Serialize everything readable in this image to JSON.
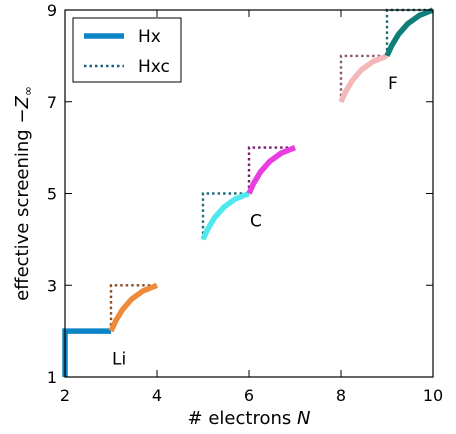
{
  "chart_data": {
    "type": "line",
    "xlabel": "# electrons",
    "xlabel_symbol": "N",
    "ylabel": "effective screening −",
    "ylabel_symbol": "Z",
    "ylabel_subscript": "∞",
    "xlim": [
      2,
      10
    ],
    "ylim": [
      1,
      9
    ],
    "xticks": [
      2,
      4,
      6,
      8,
      10
    ],
    "yticks": [
      1,
      3,
      5,
      7,
      9
    ],
    "grid": false,
    "legend": {
      "placement": "top-left",
      "entries": [
        {
          "label": "Hx",
          "style": "solid"
        },
        {
          "label": "Hxc",
          "style": "dotted"
        }
      ]
    },
    "annotations": [
      {
        "text": "Li",
        "x": 3.0,
        "y": 1.45
      },
      {
        "text": "C",
        "x": 6.0,
        "y": 4.45
      },
      {
        "text": "F",
        "x": 9.0,
        "y": 7.45
      }
    ],
    "series": [
      {
        "group": "Hx",
        "color": "#0b84c6",
        "style": "solid",
        "x": [
          2.0,
          2.0,
          3.0
        ],
        "y": [
          1.0,
          2.0,
          2.0
        ]
      },
      {
        "group": "Hx",
        "color": "#ef8a3a",
        "style": "solid",
        "x": [
          3.0,
          3.1,
          3.25,
          3.45,
          3.7,
          4.0
        ],
        "y": [
          2.0,
          2.22,
          2.47,
          2.7,
          2.88,
          3.0
        ]
      },
      {
        "group": "Hx",
        "color": "#4fe8ee",
        "style": "solid",
        "x": [
          5.0,
          5.1,
          5.25,
          5.45,
          5.7,
          6.0
        ],
        "y": [
          4.0,
          4.22,
          4.47,
          4.7,
          4.88,
          5.0
        ]
      },
      {
        "group": "Hx",
        "color": "#e83de0",
        "style": "solid",
        "x": [
          6.0,
          6.1,
          6.25,
          6.45,
          6.7,
          7.0
        ],
        "y": [
          5.0,
          5.22,
          5.47,
          5.7,
          5.88,
          6.0
        ]
      },
      {
        "group": "Hx",
        "color": "#f5b8b8",
        "style": "solid",
        "x": [
          8.0,
          8.1,
          8.25,
          8.45,
          8.7,
          9.0
        ],
        "y": [
          7.0,
          7.22,
          7.47,
          7.7,
          7.88,
          8.0
        ]
      },
      {
        "group": "Hx",
        "color": "#0e7f78",
        "style": "solid",
        "x": [
          9.0,
          9.1,
          9.25,
          9.45,
          9.7,
          10.0
        ],
        "y": [
          8.0,
          8.22,
          8.47,
          8.7,
          8.88,
          9.0
        ]
      },
      {
        "group": "Hxc",
        "color": "#1a5f82",
        "style": "dotted",
        "x": [
          2.0,
          2.0,
          3.0
        ],
        "y": [
          1.0,
          2.0,
          2.0
        ]
      },
      {
        "group": "Hxc",
        "color": "#8a4a22",
        "style": "dotted",
        "x": [
          3.0,
          3.0,
          4.0
        ],
        "y": [
          2.0,
          3.0,
          3.0
        ]
      },
      {
        "group": "Hxc",
        "color": "#1d6e7a",
        "style": "dotted",
        "x": [
          5.0,
          5.0,
          6.0
        ],
        "y": [
          4.0,
          5.0,
          5.0
        ]
      },
      {
        "group": "Hxc",
        "color": "#7a1a72",
        "style": "dotted",
        "x": [
          6.0,
          6.0,
          7.0
        ],
        "y": [
          5.0,
          6.0,
          6.0
        ]
      },
      {
        "group": "Hxc",
        "color": "#8a5a6a",
        "style": "dotted",
        "x": [
          8.0,
          8.0,
          9.0
        ],
        "y": [
          7.0,
          8.0,
          8.0
        ]
      },
      {
        "group": "Hxc",
        "color": "#1a6a6a",
        "style": "dotted",
        "x": [
          9.0,
          9.0,
          10.0
        ],
        "y": [
          8.0,
          9.0,
          9.0
        ]
      }
    ]
  }
}
